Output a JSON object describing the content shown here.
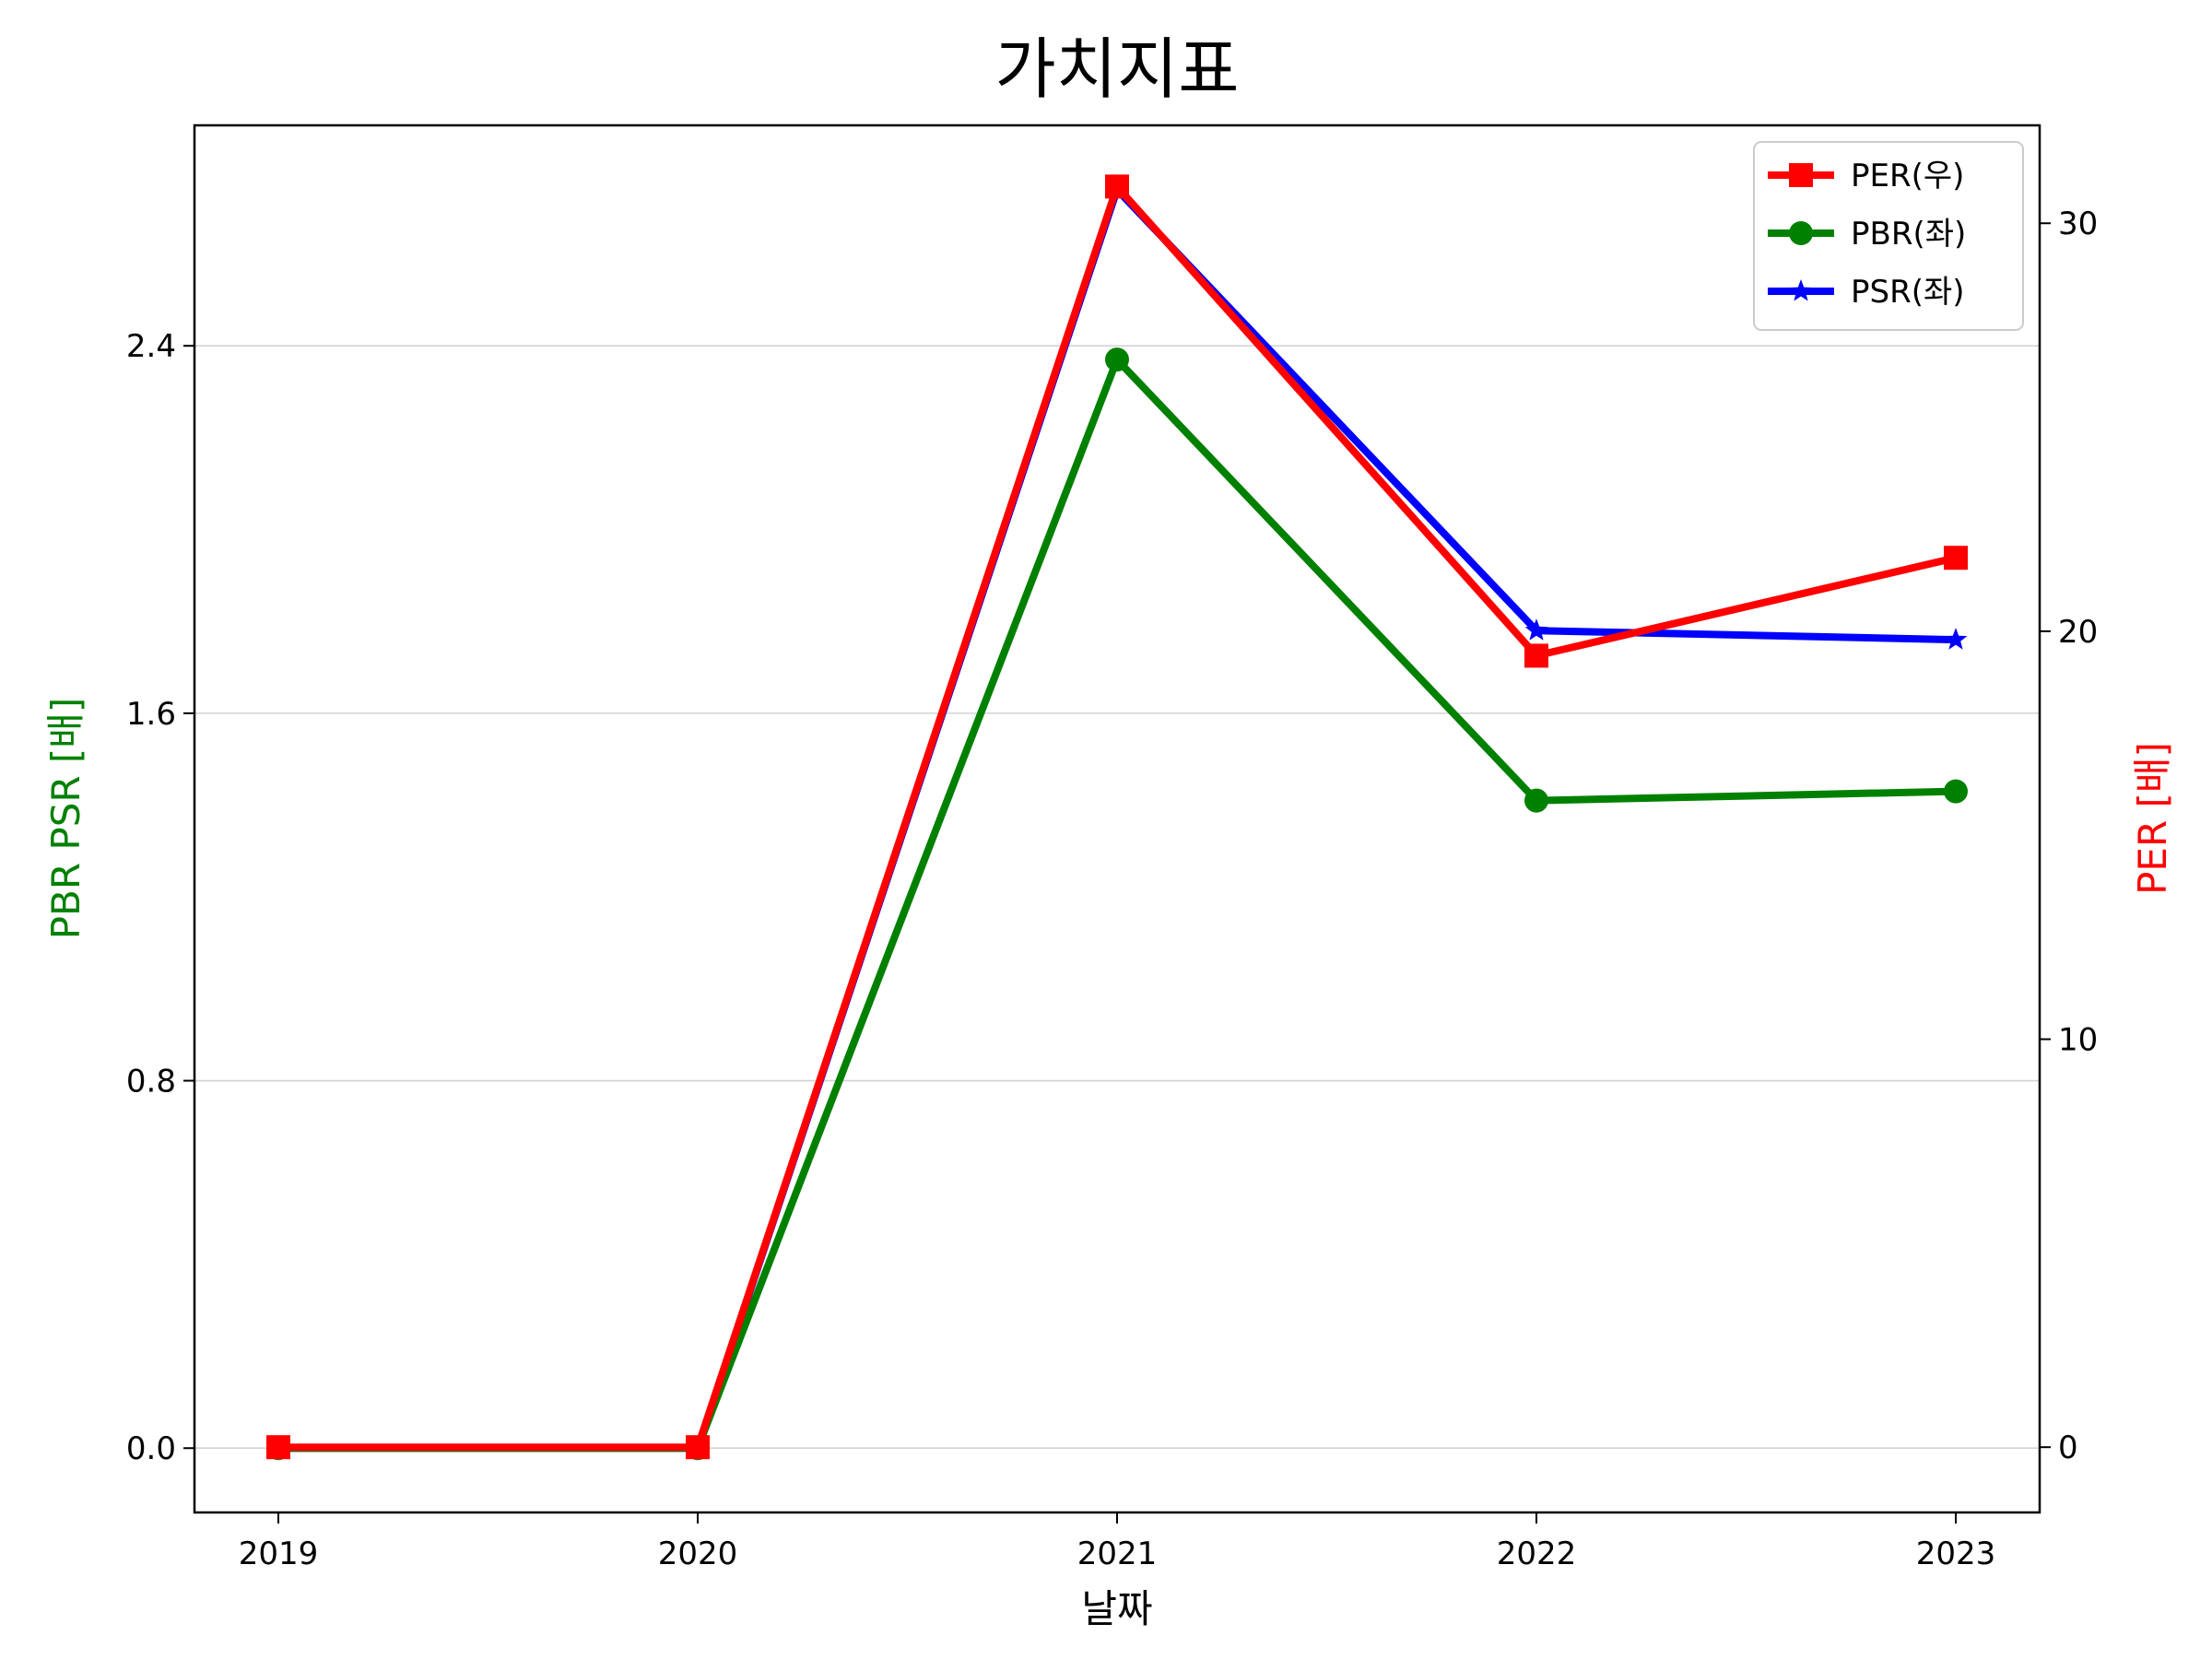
{
  "chart_data": {
    "type": "line",
    "title": "가치지표",
    "xlabel": "날짜",
    "ylabel_left": "PBR PSR [배]",
    "ylabel_right": "PER [배]",
    "x": [
      "2019",
      "2020",
      "2021",
      "2022",
      "2023"
    ],
    "y_left_ticks": [
      "0.0",
      "0.8",
      "1.6",
      "2.4"
    ],
    "y_left_range": [
      -0.14,
      2.88
    ],
    "y_right_ticks": [
      "0",
      "10",
      "20",
      "30"
    ],
    "y_right_range": [
      -1.6,
      32.4
    ],
    "grid": "horizontal",
    "legend": "top-right",
    "series": [
      {
        "name": "PER(우)",
        "axis": "right",
        "color": "#ff0000",
        "marker": "square",
        "values": [
          0,
          0,
          30.9,
          19.4,
          21.8
        ]
      },
      {
        "name": "PBR(좌)",
        "axis": "left",
        "color": "#008000",
        "marker": "circle",
        "values": [
          0,
          0,
          2.37,
          1.41,
          1.43
        ]
      },
      {
        "name": "PSR(좌)",
        "axis": "left",
        "color": "#0000ff",
        "marker": "star",
        "values": [
          0,
          0,
          2.74,
          1.78,
          1.76
        ]
      }
    ],
    "legend_order": [
      "PER(우)",
      "PBR(좌)",
      "PSR(좌)"
    ],
    "axis_title_colors": {
      "left": "#008000",
      "right": "#ff0000"
    }
  }
}
